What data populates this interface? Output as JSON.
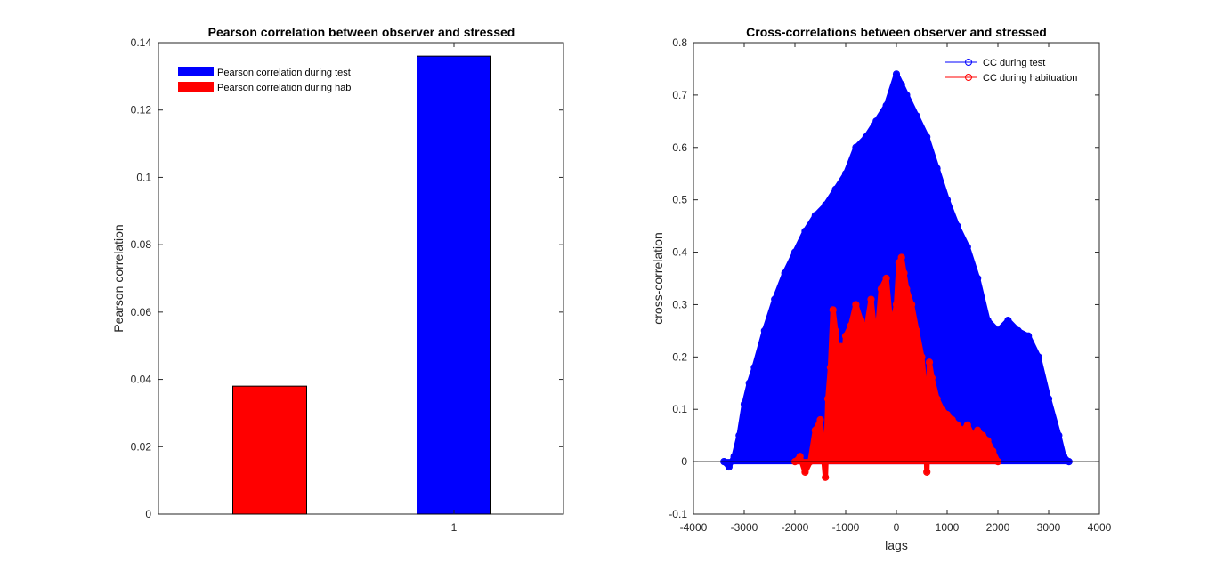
{
  "chart_data": [
    {
      "type": "bar",
      "title": "Pearson correlation between observer and stressed",
      "xlabel": "",
      "ylabel": "Pearson correlation",
      "categories": [
        "1"
      ],
      "ylim": [
        0,
        0.14
      ],
      "yticks": [
        "0",
        "0.02",
        "0.04",
        "0.06",
        "0.08",
        "0.1",
        "0.12",
        "0.14"
      ],
      "xticks": [
        "1"
      ],
      "series": [
        {
          "name": "Pearson correlation during test",
          "values": [
            0.136
          ],
          "color": "#0000ff"
        },
        {
          "name": "Pearson correlation during hab",
          "values": [
            0.038
          ],
          "color": "#ff0000"
        }
      ],
      "legend": "top-left",
      "grid": false
    },
    {
      "type": "scatter",
      "title": "Cross-correlations between observer and stressed",
      "xlabel": "lags",
      "ylabel": "cross-correlation",
      "xlim": [
        -4000,
        4000
      ],
      "ylim": [
        -0.1,
        0.8
      ],
      "xticks": [
        "-4000",
        "-3000",
        "-2000",
        "-1000",
        "0",
        "1000",
        "2000",
        "3000",
        "4000"
      ],
      "yticks": [
        "-0.1",
        "0",
        "0.1",
        "0.2",
        "0.3",
        "0.4",
        "0.5",
        "0.6",
        "0.7",
        "0.8"
      ],
      "legend": "top-right",
      "grid": false,
      "series": [
        {
          "name": "CC during test",
          "color": "#0000ff",
          "marker": "o",
          "x": [
            -3400,
            -3300,
            -3200,
            -3100,
            -3000,
            -2900,
            -2800,
            -2600,
            -2400,
            -2200,
            -2000,
            -1800,
            -1600,
            -1400,
            -1200,
            -1000,
            -800,
            -600,
            -400,
            -200,
            0,
            100,
            200,
            400,
            600,
            800,
            1000,
            1200,
            1400,
            1600,
            1800,
            2000,
            2200,
            2400,
            2600,
            2800,
            3000,
            3200,
            3300,
            3400
          ],
          "y": [
            0.0,
            -0.01,
            0.01,
            0.05,
            0.11,
            0.15,
            0.18,
            0.25,
            0.31,
            0.36,
            0.4,
            0.44,
            0.47,
            0.49,
            0.52,
            0.55,
            0.6,
            0.62,
            0.65,
            0.68,
            0.74,
            0.72,
            0.7,
            0.66,
            0.62,
            0.56,
            0.5,
            0.45,
            0.41,
            0.35,
            0.27,
            0.25,
            0.27,
            0.25,
            0.24,
            0.2,
            0.12,
            0.05,
            0.01,
            0.0
          ]
        },
        {
          "name": "CC during habituation",
          "color": "#ff0000",
          "marker": "o",
          "x": [
            -2000,
            -1900,
            -1800,
            -1700,
            -1600,
            -1500,
            -1400,
            -1350,
            -1300,
            -1250,
            -1200,
            -1150,
            -1100,
            -1050,
            -1000,
            -900,
            -800,
            -700,
            -600,
            -500,
            -400,
            -300,
            -200,
            -100,
            0,
            50,
            100,
            150,
            200,
            300,
            400,
            500,
            550,
            600,
            650,
            700,
            800,
            900,
            1000,
            1100,
            1200,
            1300,
            1400,
            1500,
            1600,
            1700,
            1800,
            1900,
            2000
          ],
          "y": [
            0.0,
            0.01,
            -0.02,
            0.0,
            0.06,
            0.08,
            -0.03,
            0.12,
            0.18,
            0.29,
            0.25,
            0.2,
            0.22,
            0.18,
            0.24,
            0.26,
            0.3,
            0.27,
            0.25,
            0.31,
            0.22,
            0.33,
            0.35,
            0.25,
            0.3,
            0.38,
            0.39,
            0.36,
            0.33,
            0.3,
            0.25,
            0.2,
            0.15,
            -0.02,
            0.19,
            0.16,
            0.12,
            0.1,
            0.09,
            0.08,
            0.07,
            0.06,
            0.07,
            0.05,
            0.06,
            0.05,
            0.04,
            0.02,
            0.0
          ]
        }
      ]
    }
  ]
}
